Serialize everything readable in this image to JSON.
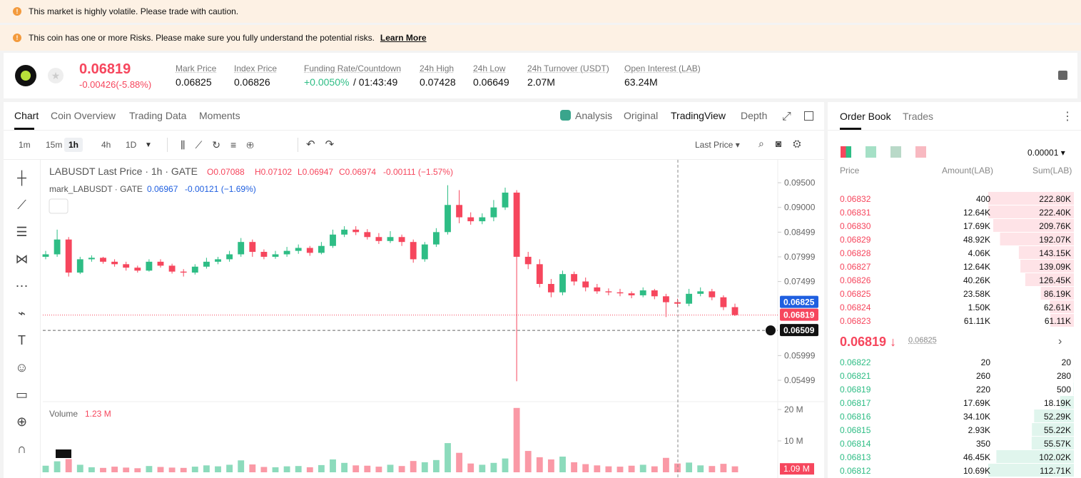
{
  "banners": {
    "volatile": "This market is highly volatile. Please trade with caution.",
    "risk": "This coin has one or more Risks. Please make sure you fully understand the potential risks.",
    "learn_more": "Learn More"
  },
  "header": {
    "price": "0.06819",
    "change": "-0.00426(-5.88%)",
    "stats": [
      {
        "label": "Mark Price",
        "value": "0.06825"
      },
      {
        "label": "Index Price",
        "value": "0.06826"
      },
      {
        "label": "Funding Rate/Countdown",
        "value": "+0.0050%",
        "extra": "/ 01:43:49"
      },
      {
        "label": "24h High",
        "value": "0.07428"
      },
      {
        "label": "24h Low",
        "value": "0.06649"
      },
      {
        "label": "24h Turnover (USDT)",
        "value": "2.07M"
      },
      {
        "label": "Open Interest (LAB)",
        "value": "63.24M"
      }
    ]
  },
  "tabs": [
    "Chart",
    "Coin Overview",
    "Trading Data",
    "Moments"
  ],
  "view_tabs": [
    "Analysis",
    "Original",
    "TradingView",
    "Depth"
  ],
  "intervals": [
    "1m",
    "15m",
    "1h",
    "4h",
    "1D"
  ],
  "price_type": "Last Price",
  "chart_data": {
    "type": "candlestick",
    "symbol": "LABUSDT Last Price · 1h · GATE",
    "ohlc_labels": [
      "O0.07088",
      "H0.07102",
      "L0.06947",
      "C0.06974",
      "-0.00111 (−1.57%)"
    ],
    "mark_line": "mark_LABUSDT · GATE",
    "mark_values": [
      "0.06967",
      "-0.00121 (−1.69%)"
    ],
    "ylim": [
      0.0508,
      0.0995
    ],
    "yticks": [
      {
        "value": 0.095,
        "label": "0.09500"
      },
      {
        "value": 0.09,
        "label": "0.09000"
      },
      {
        "value": 0.08499,
        "label": "0.08499"
      },
      {
        "value": 0.07999,
        "label": "0.07999"
      },
      {
        "value": 0.07499,
        "label": "0.07499"
      },
      {
        "value": 0.05999,
        "label": "0.05999"
      },
      {
        "value": 0.05499,
        "label": "0.05499"
      }
    ],
    "up_color": "#2ebd85",
    "down_color": "#f6465d",
    "candles": [
      [
        0.08,
        0.0812,
        0.0795,
        0.0805
      ],
      [
        0.0805,
        0.0855,
        0.08,
        0.0835
      ],
      [
        0.0835,
        0.084,
        0.076,
        0.0768
      ],
      [
        0.0768,
        0.08,
        0.0765,
        0.0795
      ],
      [
        0.0795,
        0.0803,
        0.079,
        0.0798
      ],
      [
        0.0798,
        0.08,
        0.0786,
        0.079
      ],
      [
        0.079,
        0.0795,
        0.078,
        0.0785
      ],
      [
        0.0785,
        0.079,
        0.0772,
        0.0778
      ],
      [
        0.0778,
        0.0782,
        0.0768,
        0.0772
      ],
      [
        0.0772,
        0.0795,
        0.077,
        0.079
      ],
      [
        0.079,
        0.0795,
        0.0778,
        0.0782
      ],
      [
        0.0782,
        0.0786,
        0.0766,
        0.077
      ],
      [
        0.077,
        0.0775,
        0.076,
        0.0768
      ],
      [
        0.0768,
        0.0785,
        0.0764,
        0.078
      ],
      [
        0.078,
        0.0798,
        0.0776,
        0.079
      ],
      [
        0.079,
        0.08,
        0.0785,
        0.0795
      ],
      [
        0.0795,
        0.0812,
        0.079,
        0.0805
      ],
      [
        0.0805,
        0.0838,
        0.08,
        0.083
      ],
      [
        0.083,
        0.0835,
        0.08,
        0.081
      ],
      [
        0.081,
        0.0815,
        0.0795,
        0.08
      ],
      [
        0.08,
        0.0812,
        0.0796,
        0.0805
      ],
      [
        0.0805,
        0.082,
        0.08,
        0.0812
      ],
      [
        0.0812,
        0.0825,
        0.0806,
        0.0818
      ],
      [
        0.0818,
        0.0822,
        0.0802,
        0.0808
      ],
      [
        0.0808,
        0.083,
        0.0805,
        0.0822
      ],
      [
        0.0822,
        0.0855,
        0.0818,
        0.0845
      ],
      [
        0.0845,
        0.0862,
        0.084,
        0.0855
      ],
      [
        0.0855,
        0.0862,
        0.0844,
        0.085
      ],
      [
        0.085,
        0.0856,
        0.0835,
        0.084
      ],
      [
        0.084,
        0.0848,
        0.0826,
        0.0832
      ],
      [
        0.0832,
        0.0852,
        0.0828,
        0.084
      ],
      [
        0.084,
        0.0845,
        0.0822,
        0.083
      ],
      [
        0.083,
        0.0835,
        0.0788,
        0.0795
      ],
      [
        0.0795,
        0.083,
        0.079,
        0.0825
      ],
      [
        0.0825,
        0.0858,
        0.082,
        0.085
      ],
      [
        0.085,
        0.0945,
        0.0845,
        0.0905
      ],
      [
        0.0905,
        0.0935,
        0.0868,
        0.088
      ],
      [
        0.088,
        0.089,
        0.0865,
        0.0872
      ],
      [
        0.0872,
        0.0888,
        0.0866,
        0.088
      ],
      [
        0.088,
        0.0915,
        0.0872,
        0.09
      ],
      [
        0.09,
        0.094,
        0.0895,
        0.093
      ],
      [
        0.093,
        0.0935,
        0.0548,
        0.08
      ],
      [
        0.08,
        0.081,
        0.0775,
        0.0785
      ],
      [
        0.0785,
        0.0795,
        0.0738,
        0.0745
      ],
      [
        0.0745,
        0.0755,
        0.0718,
        0.0728
      ],
      [
        0.0728,
        0.0772,
        0.0722,
        0.0765
      ],
      [
        0.0765,
        0.077,
        0.0742,
        0.075
      ],
      [
        0.075,
        0.0758,
        0.073,
        0.0738
      ],
      [
        0.0738,
        0.0745,
        0.0725,
        0.073
      ],
      [
        0.073,
        0.0736,
        0.0722,
        0.0728
      ],
      [
        0.0728,
        0.0735,
        0.072,
        0.0726
      ],
      [
        0.0726,
        0.073,
        0.0716,
        0.0722
      ],
      [
        0.0722,
        0.0738,
        0.0718,
        0.0732
      ],
      [
        0.0732,
        0.0735,
        0.0714,
        0.072
      ],
      [
        0.072,
        0.0725,
        0.0678,
        0.0708
      ],
      [
        0.0708,
        0.0715,
        0.0698,
        0.0705
      ],
      [
        0.0705,
        0.0735,
        0.07,
        0.0725
      ],
      [
        0.0725,
        0.0738,
        0.072,
        0.073
      ],
      [
        0.073,
        0.0735,
        0.0712,
        0.0718
      ],
      [
        0.0718,
        0.0722,
        0.0692,
        0.0698
      ],
      [
        0.0698,
        0.0705,
        0.068,
        0.0682
      ]
    ],
    "price_badges": [
      {
        "value": 0.06825,
        "label": "0.06825",
        "color": "#1f5fe0"
      },
      {
        "value": 0.06819,
        "label": "0.06819",
        "color": "#f6465d"
      },
      {
        "value": 0.06509,
        "label": "0.06509",
        "color": "#111111"
      }
    ],
    "volume_title": "Volume",
    "volume_value": "1.23 M",
    "volumes": [
      2.1,
      3.5,
      4.2,
      2.4,
      1.6,
      1.4,
      1.8,
      1.5,
      1.3,
      2.0,
      1.7,
      1.5,
      1.4,
      1.8,
      2.2,
      1.9,
      2.4,
      3.8,
      2.5,
      1.7,
      1.6,
      1.9,
      2.0,
      1.6,
      2.3,
      4.1,
      3.0,
      2.2,
      2.1,
      1.8,
      2.4,
      2.0,
      3.6,
      3.2,
      3.9,
      9.3,
      6.2,
      2.8,
      2.4,
      3.0,
      4.4,
      20.5,
      6.8,
      4.8,
      4.1,
      5.0,
      3.2,
      2.6,
      2.2,
      1.9,
      1.8,
      2.1,
      2.4,
      1.9,
      4.6,
      2.8,
      3.1,
      2.2,
      2.0,
      2.7,
      1.9
    ],
    "vlim": [
      0,
      22.5
    ],
    "vticks": [
      {
        "value": 20,
        "label": "20 M"
      },
      {
        "value": 10,
        "label": "10 M"
      }
    ],
    "volume_badge": {
      "value": 1.09,
      "label": "1.09 M"
    }
  },
  "order_book": {
    "tabs": [
      "Order Book",
      "Trades"
    ],
    "precision": "0.00001",
    "columns": [
      "Price",
      "Amount(LAB)",
      "Sum(LAB)"
    ],
    "asks": [
      [
        "0.06832",
        "400",
        {
          "value": 222800,
          "label": "222.80K"
        }
      ],
      [
        "0.06831",
        "12.64K",
        {
          "value": 222400,
          "label": "222.40K"
        }
      ],
      [
        "0.06830",
        "17.69K",
        {
          "value": 209760,
          "label": "209.76K"
        }
      ],
      [
        "0.06829",
        "48.92K",
        {
          "value": 192070,
          "label": "192.07K"
        }
      ],
      [
        "0.06828",
        "4.06K",
        {
          "value": 143150,
          "label": "143.15K"
        }
      ],
      [
        "0.06827",
        "12.64K",
        {
          "value": 139090,
          "label": "139.09K"
        }
      ],
      [
        "0.06826",
        "40.26K",
        {
          "value": 126450,
          "label": "126.45K"
        }
      ],
      [
        "0.06825",
        "23.58K",
        {
          "value": 86190,
          "label": "86.19K"
        }
      ],
      [
        "0.06824",
        "1.50K",
        {
          "value": 62610,
          "label": "62.61K"
        }
      ],
      [
        "0.06823",
        "61.11K",
        {
          "value": 61110,
          "label": "61.11K"
        }
      ]
    ],
    "last_price": "0.06819",
    "mark_price": "0.06825",
    "bids": [
      [
        "0.06822",
        "20",
        {
          "value": 20,
          "label": "20"
        }
      ],
      [
        "0.06821",
        "260",
        {
          "value": 280,
          "label": "280"
        }
      ],
      [
        "0.06819",
        "220",
        {
          "value": 500,
          "label": "500"
        }
      ],
      [
        "0.06817",
        "17.69K",
        {
          "value": 18190,
          "label": "18.19K"
        }
      ],
      [
        "0.06816",
        "34.10K",
        {
          "value": 52290,
          "label": "52.29K"
        }
      ],
      [
        "0.06815",
        "2.93K",
        {
          "value": 55220,
          "label": "55.22K"
        }
      ],
      [
        "0.06814",
        "350",
        {
          "value": 55570,
          "label": "55.57K"
        }
      ],
      [
        "0.06813",
        "46.45K",
        {
          "value": 102020,
          "label": "102.02K"
        }
      ],
      [
        "0.06812",
        "10.69K",
        {
          "value": 112710,
          "label": "112.71K"
        }
      ]
    ]
  }
}
